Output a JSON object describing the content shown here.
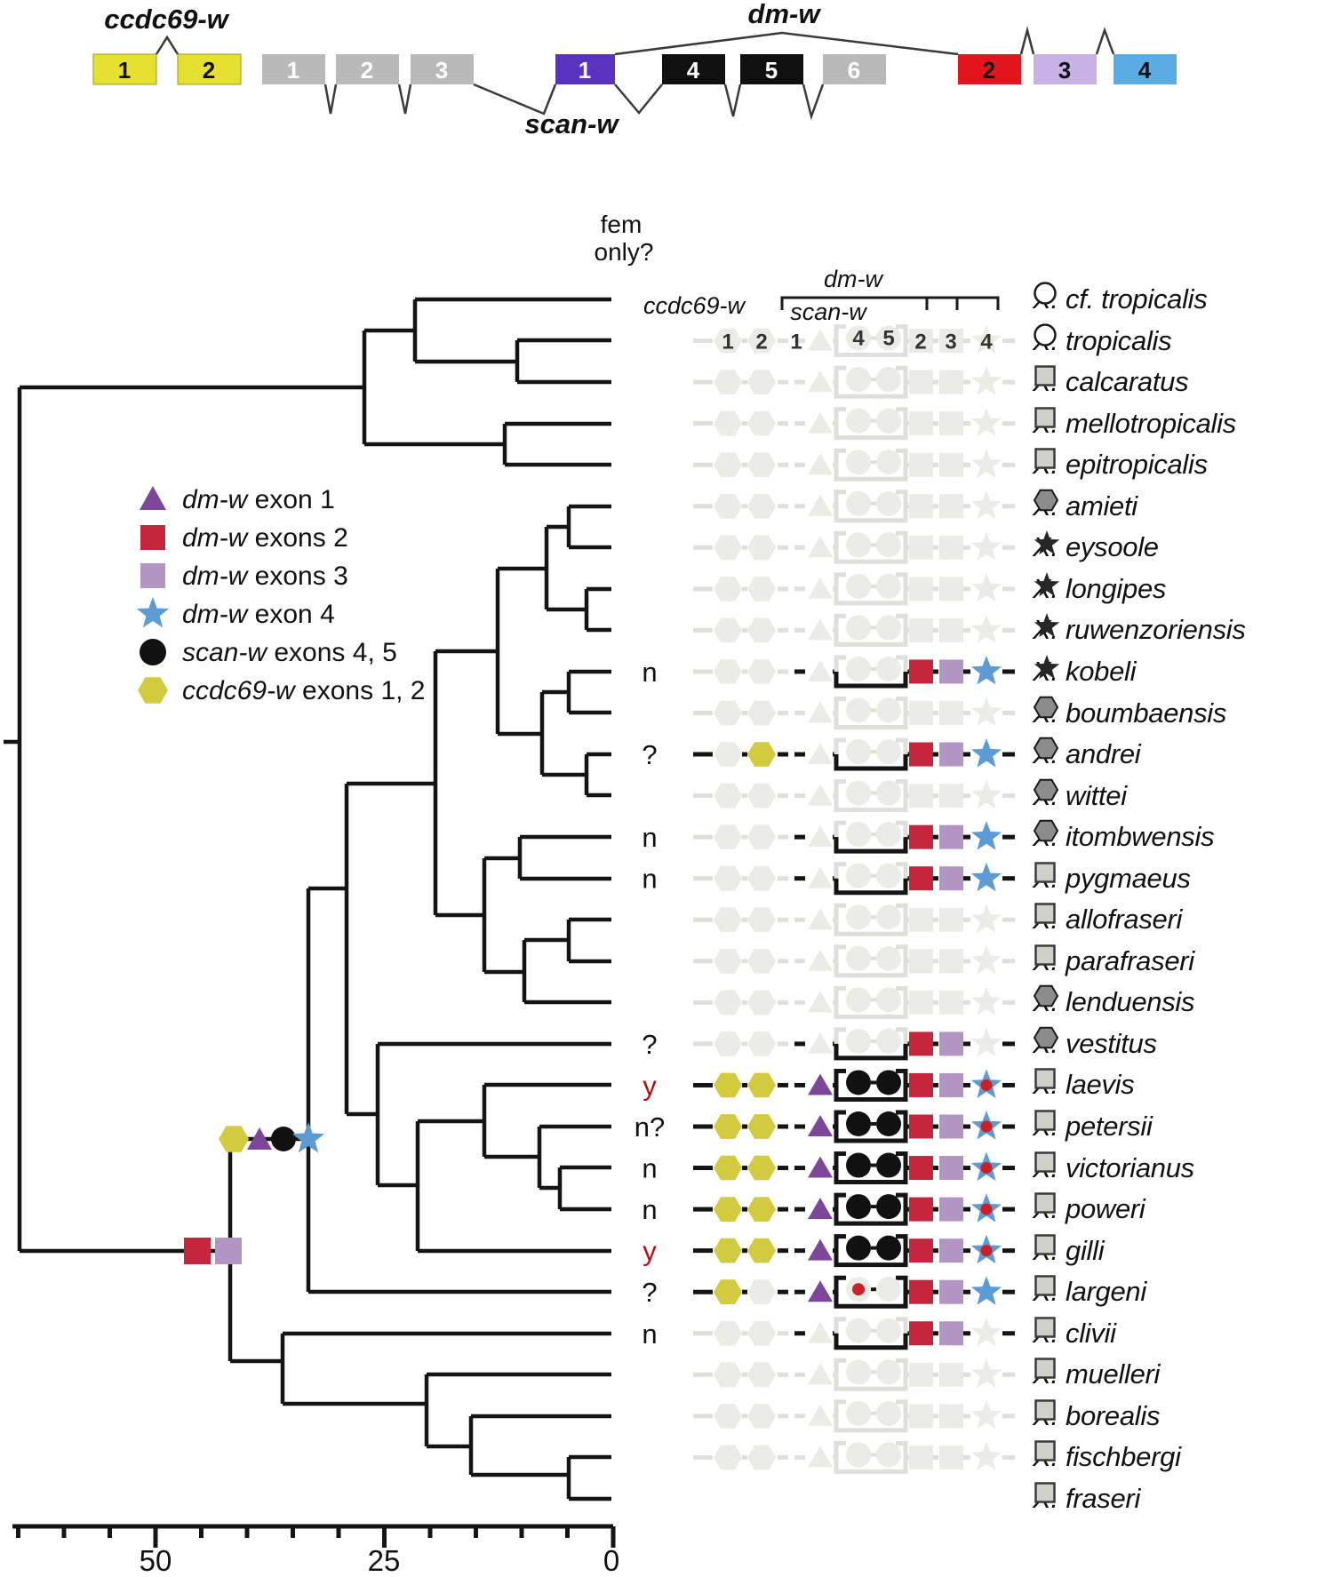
{
  "gene_diagram": {
    "ccdc69w_label": "ccdc69-w",
    "scanw_label": "scan-w",
    "dmw_label": "dm-w",
    "ccdc69w_exons": [
      "1",
      "2"
    ],
    "grey_exons": [
      "1",
      "2",
      "3"
    ],
    "dmw_exon1": "1",
    "scanw_exons": [
      "4",
      "5"
    ],
    "grey_exon6": "6",
    "dmw_exons_right": [
      "2",
      "3",
      "4"
    ]
  },
  "header": {
    "fem_line1": "fem",
    "fem_line2": "only?",
    "ccdc69w": "ccdc69-w",
    "dmw": "dm-w",
    "scanw": "scan-w",
    "exon_numbers": [
      "1",
      "2",
      "1",
      "4",
      "5",
      "2",
      "3",
      "4"
    ]
  },
  "legend": {
    "items": [
      {
        "shape": "triangle",
        "gene": "dm-w",
        "rest": " exon 1"
      },
      {
        "shape": "square-red",
        "gene": "dm-w",
        "rest": " exons 2"
      },
      {
        "shape": "square-lavender",
        "gene": "dm-w",
        "rest": " exons 3"
      },
      {
        "shape": "star",
        "gene": "dm-w",
        "rest": " exon 4"
      },
      {
        "shape": "circle",
        "gene": "scan-w",
        "rest": " exons 4, 5"
      },
      {
        "shape": "hexagon",
        "gene": "ccdc69-w",
        "rest": " exons 1, 2"
      }
    ]
  },
  "axis": {
    "labels": [
      "50",
      "25",
      "0"
    ]
  },
  "species": [
    {
      "name": "X. cf. tropicalis",
      "marker": "circle",
      "fem": "",
      "pattern": "header"
    },
    {
      "name": "X. tropicalis",
      "marker": "circle",
      "fem": "",
      "pattern": "grey_nums"
    },
    {
      "name": "X. calcaratus",
      "marker": "square",
      "fem": "",
      "pattern": "grey"
    },
    {
      "name": "X. mellotropicalis",
      "marker": "square",
      "fem": "",
      "pattern": "grey"
    },
    {
      "name": "X. epitropicalis",
      "marker": "square",
      "fem": "",
      "pattern": "grey"
    },
    {
      "name": "X. amieti",
      "marker": "hexagon",
      "fem": "",
      "pattern": "grey"
    },
    {
      "name": "X. eysoole",
      "marker": "star",
      "fem": "",
      "pattern": "grey"
    },
    {
      "name": "X. longipes",
      "marker": "star",
      "fem": "",
      "pattern": "grey"
    },
    {
      "name": "X. ruwenzoriensis",
      "marker": "star",
      "fem": "",
      "pattern": "grey"
    },
    {
      "name": "X. kobeli",
      "marker": "star",
      "fem": "n",
      "pattern": "dmw234"
    },
    {
      "name": "X. boumbaensis",
      "marker": "hexagon",
      "fem": "",
      "pattern": "grey"
    },
    {
      "name": "X. andrei",
      "marker": "hexagon",
      "fem": "?",
      "pattern": "dmw234h2"
    },
    {
      "name": "X. wittei",
      "marker": "hexagon",
      "fem": "",
      "pattern": "grey"
    },
    {
      "name": "X. itombwensis",
      "marker": "hexagon",
      "fem": "n",
      "pattern": "dmw234"
    },
    {
      "name": "X. pygmaeus",
      "marker": "square",
      "fem": "n",
      "pattern": "dmw234"
    },
    {
      "name": "X. allofraseri",
      "marker": "square",
      "fem": "",
      "pattern": "grey"
    },
    {
      "name": "X. parafraseri",
      "marker": "square",
      "fem": "",
      "pattern": "grey"
    },
    {
      "name": "X. lenduensis",
      "marker": "hexagon",
      "fem": "",
      "pattern": "grey"
    },
    {
      "name": "X. vestitus",
      "marker": "hexagon",
      "fem": "?",
      "pattern": "dmw23"
    },
    {
      "name": "X. laevis",
      "marker": "square",
      "fem": "y",
      "fem_red": true,
      "pattern": "full"
    },
    {
      "name": "X. petersii",
      "marker": "square",
      "fem": "n?",
      "pattern": "full"
    },
    {
      "name": "X. victorianus",
      "marker": "square",
      "fem": "n",
      "pattern": "full"
    },
    {
      "name": "X. poweri",
      "marker": "square",
      "fem": "n",
      "pattern": "full"
    },
    {
      "name": "X. gilli",
      "marker": "square",
      "fem": "y",
      "fem_red": true,
      "pattern": "full"
    },
    {
      "name": "X. largeni",
      "marker": "square",
      "fem": "?",
      "pattern": "largeni"
    },
    {
      "name": "X. clivii",
      "marker": "square",
      "fem": "n",
      "pattern": "dmw23"
    },
    {
      "name": "X. muelleri",
      "marker": "square",
      "fem": "",
      "pattern": "grey"
    },
    {
      "name": "X. borealis",
      "marker": "square",
      "fem": "",
      "pattern": "grey"
    },
    {
      "name": "X. fischbergi",
      "marker": "square",
      "fem": "",
      "pattern": "grey"
    },
    {
      "name": "X. fraseri",
      "marker": "square",
      "fem": "",
      "pattern": "none"
    }
  ],
  "colors": {
    "yellow_box": "#e6e131",
    "grey_box": "#b9b9b9",
    "purple_box": "#5a32c0",
    "black_box": "#101010",
    "red_box": "#e3151c",
    "lavender_box": "#c8b1e4",
    "blue_box": "#5aace4",
    "hex_yellow": "#d3cb3f",
    "tri_purple": "#7c4799",
    "sq_red": "#c5253d",
    "sq_lavender": "#b295c2",
    "star_blue": "#5c9bd3",
    "circle_black": "#111111",
    "dot_red": "#cc2027",
    "inactive_shape": "#ebebe8",
    "inactive_line": "#dfdfdb",
    "line_black": "#141414",
    "marker_square": "#d0d0ca",
    "marker_hex": "#8c8c8c",
    "marker_star": "#262626",
    "fem_yes": "#b50e14"
  }
}
